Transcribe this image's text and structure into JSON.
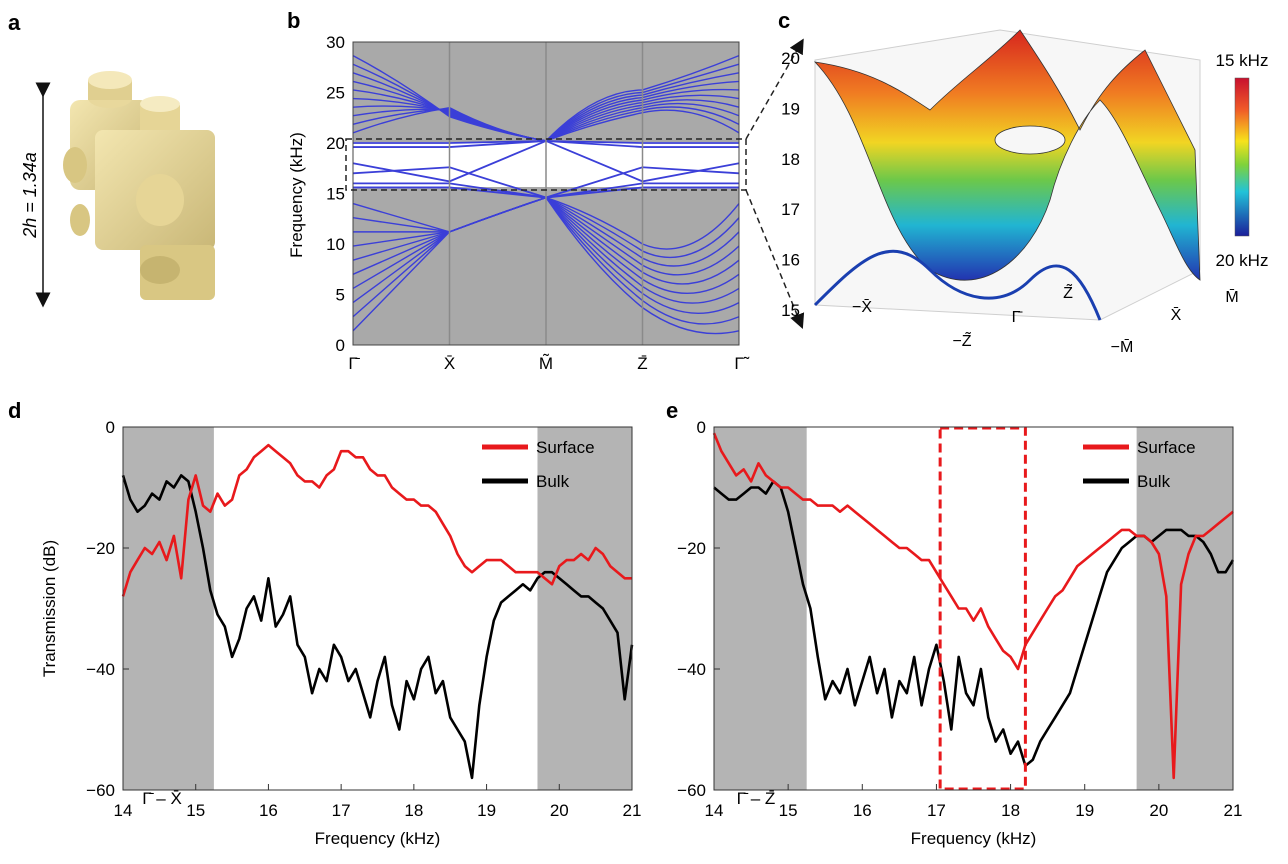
{
  "panels": {
    "a": {
      "label": "a",
      "dimension_label": "2h = 1.34a"
    },
    "b": {
      "label": "b",
      "ylabel": "Frequency (kHz)",
      "yticks": [
        "0",
        "5",
        "10",
        "15",
        "20",
        "25",
        "30"
      ],
      "xticks": [
        "Γ̄",
        "X̄",
        "M̃",
        "Z̄",
        "Γ̃"
      ]
    },
    "c": {
      "label": "c",
      "zticks": [
        "15",
        "16",
        "17",
        "18",
        "19",
        "20"
      ],
      "colorbar_top": "15 kHz",
      "colorbar_bottom": "20 kHz",
      "axis_labels": [
        "−X̄",
        "−Z̃",
        "Γ̄",
        "Z̃",
        "X̄",
        "M̄",
        "−M̄"
      ]
    },
    "d": {
      "label": "d",
      "annotation": "Γ̄ – X̄"
    },
    "e": {
      "label": "e",
      "annotation": "Γ̄ – Z̄"
    }
  },
  "chart_data": [
    {
      "id": "d",
      "type": "line",
      "xlabel": "Frequency (kHz)",
      "ylabel": "Transmission (dB)",
      "xlim": [
        14,
        21
      ],
      "ylim": [
        -60,
        0
      ],
      "xticks": [
        "14",
        "15",
        "16",
        "17",
        "18",
        "19",
        "20",
        "21"
      ],
      "yticks": [
        "0",
        "−20",
        "−40",
        "−60"
      ],
      "shaded_regions": [
        [
          14,
          15.25
        ],
        [
          19.7,
          21
        ]
      ],
      "legend": "top-right",
      "series": [
        {
          "name": "Surface",
          "color": "#e8191c",
          "x": [
            14,
            14.1,
            14.2,
            14.3,
            14.4,
            14.5,
            14.6,
            14.7,
            14.8,
            14.9,
            15.0,
            15.1,
            15.2,
            15.3,
            15.4,
            15.5,
            15.6,
            15.7,
            15.8,
            15.9,
            16.0,
            16.1,
            16.2,
            16.3,
            16.4,
            16.5,
            16.6,
            16.7,
            16.8,
            16.9,
            17.0,
            17.1,
            17.2,
            17.3,
            17.4,
            17.5,
            17.6,
            17.7,
            17.8,
            17.9,
            18.0,
            18.1,
            18.2,
            18.3,
            18.4,
            18.5,
            18.6,
            18.7,
            18.8,
            18.9,
            19.0,
            19.1,
            19.2,
            19.3,
            19.4,
            19.5,
            19.6,
            19.7,
            19.8,
            19.9,
            20.0,
            20.1,
            20.2,
            20.3,
            20.4,
            20.5,
            20.6,
            20.7,
            20.8,
            20.9,
            21.0
          ],
          "y": [
            -28,
            -24,
            -22,
            -20,
            -21,
            -19,
            -22,
            -18,
            -25,
            -12,
            -8,
            -13,
            -14,
            -11,
            -13,
            -12,
            -8,
            -7,
            -5,
            -4,
            -3,
            -4,
            -5,
            -6,
            -8,
            -9,
            -9,
            -10,
            -8,
            -7,
            -4,
            -4,
            -5,
            -5,
            -7,
            -8,
            -8,
            -10,
            -11,
            -12,
            -12,
            -13,
            -13,
            -14,
            -16,
            -18,
            -21,
            -23,
            -24,
            -23,
            -22,
            -22,
            -22,
            -23,
            -24,
            -24,
            -24,
            -24,
            -25,
            -26,
            -23,
            -22,
            -22,
            -21,
            -22,
            -20,
            -21,
            -23,
            -24,
            -25,
            -25
          ]
        },
        {
          "name": "Bulk",
          "color": "#000000",
          "x": [
            14,
            14.1,
            14.2,
            14.3,
            14.4,
            14.5,
            14.6,
            14.7,
            14.8,
            14.9,
            15.0,
            15.1,
            15.2,
            15.3,
            15.4,
            15.5,
            15.6,
            15.7,
            15.8,
            15.9,
            16.0,
            16.1,
            16.2,
            16.3,
            16.4,
            16.5,
            16.6,
            16.7,
            16.8,
            16.9,
            17.0,
            17.1,
            17.2,
            17.3,
            17.4,
            17.5,
            17.6,
            17.7,
            17.8,
            17.9,
            18.0,
            18.1,
            18.2,
            18.3,
            18.4,
            18.5,
            18.6,
            18.7,
            18.8,
            18.9,
            19.0,
            19.1,
            19.2,
            19.3,
            19.4,
            19.5,
            19.6,
            19.7,
            19.8,
            19.9,
            20.0,
            20.1,
            20.2,
            20.3,
            20.4,
            20.5,
            20.6,
            20.7,
            20.8,
            20.9,
            21.0
          ],
          "y": [
            -8,
            -12,
            -14,
            -13,
            -11,
            -12,
            -9,
            -10,
            -8,
            -9,
            -14,
            -20,
            -27,
            -31,
            -33,
            -38,
            -35,
            -30,
            -28,
            -32,
            -25,
            -33,
            -31,
            -28,
            -36,
            -38,
            -44,
            -40,
            -42,
            -36,
            -38,
            -42,
            -40,
            -44,
            -48,
            -42,
            -38,
            -46,
            -50,
            -42,
            -45,
            -40,
            -38,
            -44,
            -42,
            -48,
            -50,
            -52,
            -58,
            -46,
            -38,
            -32,
            -29,
            -28,
            -27,
            -26,
            -27,
            -25,
            -24,
            -24,
            -25,
            -26,
            -27,
            -28,
            -28,
            -29,
            -30,
            -32,
            -34,
            -45,
            -36
          ]
        }
      ]
    },
    {
      "id": "e",
      "type": "line",
      "xlabel": "Frequency (kHz)",
      "ylabel": "",
      "xlim": [
        14,
        21
      ],
      "ylim": [
        -60,
        0
      ],
      "xticks": [
        "14",
        "15",
        "16",
        "17",
        "18",
        "19",
        "20",
        "21"
      ],
      "yticks": [
        "0",
        "−20",
        "−40",
        "−60"
      ],
      "shaded_regions": [
        [
          14,
          15.25
        ],
        [
          19.7,
          21
        ]
      ],
      "highlight_box": [
        17.05,
        18.2
      ],
      "legend": "top-right",
      "series": [
        {
          "name": "Surface",
          "color": "#e8191c",
          "x": [
            14,
            14.1,
            14.2,
            14.3,
            14.4,
            14.5,
            14.6,
            14.7,
            14.8,
            14.9,
            15.0,
            15.1,
            15.2,
            15.3,
            15.4,
            15.5,
            15.6,
            15.7,
            15.8,
            15.9,
            16.0,
            16.1,
            16.2,
            16.3,
            16.4,
            16.5,
            16.6,
            16.7,
            16.8,
            16.9,
            17.0,
            17.1,
            17.2,
            17.3,
            17.4,
            17.5,
            17.6,
            17.7,
            17.8,
            17.9,
            18.0,
            18.1,
            18.2,
            18.3,
            18.4,
            18.5,
            18.6,
            18.7,
            18.8,
            18.9,
            19.0,
            19.1,
            19.2,
            19.3,
            19.4,
            19.5,
            19.6,
            19.7,
            19.8,
            19.9,
            20.0,
            20.1,
            20.2,
            20.3,
            20.4,
            20.5,
            20.6,
            20.7,
            20.8,
            20.9,
            21.0
          ],
          "y": [
            -1,
            -4,
            -6,
            -8,
            -7,
            -9,
            -6,
            -8,
            -9,
            -10,
            -10,
            -11,
            -12,
            -12,
            -13,
            -13,
            -13,
            -14,
            -13,
            -14,
            -15,
            -16,
            -17,
            -18,
            -19,
            -20,
            -20,
            -21,
            -22,
            -22,
            -24,
            -26,
            -28,
            -30,
            -30,
            -32,
            -30,
            -33,
            -35,
            -37,
            -38,
            -40,
            -36,
            -34,
            -32,
            -30,
            -28,
            -27,
            -25,
            -23,
            -22,
            -21,
            -20,
            -19,
            -18,
            -17,
            -17,
            -18,
            -18,
            -19,
            -21,
            -28,
            -58,
            -26,
            -21,
            -18,
            -18,
            -17,
            -16,
            -15,
            -14
          ]
        },
        {
          "name": "Bulk",
          "color": "#000000",
          "x": [
            14,
            14.1,
            14.2,
            14.3,
            14.4,
            14.5,
            14.6,
            14.7,
            14.8,
            14.9,
            15.0,
            15.1,
            15.2,
            15.3,
            15.4,
            15.5,
            15.6,
            15.7,
            15.8,
            15.9,
            16.0,
            16.1,
            16.2,
            16.3,
            16.4,
            16.5,
            16.6,
            16.7,
            16.8,
            16.9,
            17.0,
            17.1,
            17.2,
            17.3,
            17.4,
            17.5,
            17.6,
            17.7,
            17.8,
            17.9,
            18.0,
            18.1,
            18.2,
            18.3,
            18.4,
            18.5,
            18.6,
            18.7,
            18.8,
            18.9,
            19.0,
            19.1,
            19.2,
            19.3,
            19.4,
            19.5,
            19.6,
            19.7,
            19.8,
            19.9,
            20.0,
            20.1,
            20.2,
            20.3,
            20.4,
            20.5,
            20.6,
            20.7,
            20.8,
            20.9,
            21.0
          ],
          "y": [
            -10,
            -11,
            -12,
            -12,
            -11,
            -10,
            -10,
            -11,
            -9,
            -10,
            -14,
            -20,
            -26,
            -30,
            -38,
            -45,
            -42,
            -44,
            -40,
            -46,
            -42,
            -38,
            -44,
            -40,
            -48,
            -42,
            -44,
            -38,
            -46,
            -40,
            -36,
            -42,
            -50,
            -38,
            -44,
            -46,
            -40,
            -48,
            -52,
            -50,
            -54,
            -52,
            -56,
            -55,
            -52,
            -50,
            -48,
            -46,
            -44,
            -40,
            -36,
            -32,
            -28,
            -24,
            -22,
            -20,
            -19,
            -18,
            -18,
            -19,
            -18,
            -17,
            -17,
            -17,
            -18,
            -18,
            -19,
            -21,
            -24,
            -24,
            -22
          ]
        }
      ]
    }
  ]
}
